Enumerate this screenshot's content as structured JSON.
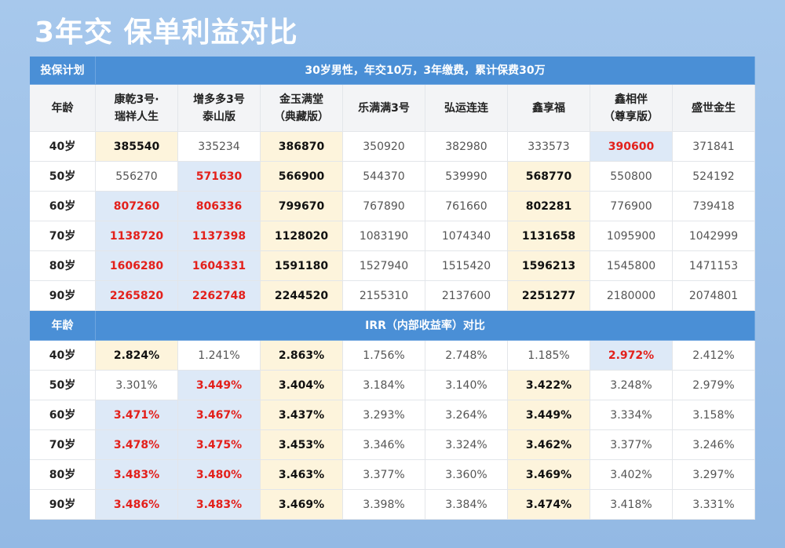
{
  "header": {
    "title": "3年交 保单利益对比"
  },
  "table": {
    "plan_label": "投保计划",
    "plan_desc": "30岁男性，年交10万，3年缴费，累计保费30万",
    "age_label": "年龄",
    "columns": [
      "康乾3号·\n瑞祥人生",
      "增多多3号\n泰山版",
      "金玉满堂\n（典藏版）",
      "乐满满3号",
      "弘运连连",
      "鑫享福",
      "鑫相伴\n（尊享版）",
      "盛世金生"
    ],
    "rows": [
      {
        "age": "40岁",
        "values": [
          385540,
          335234,
          386870,
          350920,
          382980,
          333573,
          390600,
          371841
        ]
      },
      {
        "age": "50岁",
        "values": [
          556270,
          571630,
          566900,
          544370,
          539990,
          568770,
          550800,
          524192
        ]
      },
      {
        "age": "60岁",
        "values": [
          807260,
          806336,
          799670,
          767890,
          761660,
          802281,
          776900,
          739418
        ]
      },
      {
        "age": "70岁",
        "values": [
          1138720,
          1137398,
          1128020,
          1083190,
          1074340,
          1131658,
          1095900,
          1042999
        ]
      },
      {
        "age": "80岁",
        "values": [
          1606280,
          1604331,
          1591180,
          1527940,
          1515420,
          1596213,
          1545800,
          1471153
        ]
      },
      {
        "age": "90岁",
        "values": [
          2265820,
          2262748,
          2244520,
          2155310,
          2137600,
          2251277,
          2180000,
          2074801
        ]
      }
    ]
  },
  "irr": {
    "age_label": "年龄",
    "title": "IRR（内部收益率）对比",
    "rows": [
      {
        "age": "40岁",
        "values": [
          "2.824%",
          "1.241%",
          "2.863%",
          "1.756%",
          "2.748%",
          "1.185%",
          "2.972%",
          "2.412%"
        ]
      },
      {
        "age": "50岁",
        "values": [
          "3.301%",
          "3.449%",
          "3.404%",
          "3.184%",
          "3.140%",
          "3.422%",
          "3.248%",
          "2.979%"
        ]
      },
      {
        "age": "60岁",
        "values": [
          "3.471%",
          "3.467%",
          "3.437%",
          "3.293%",
          "3.264%",
          "3.449%",
          "3.334%",
          "3.158%"
        ]
      },
      {
        "age": "70岁",
        "values": [
          "3.478%",
          "3.475%",
          "3.453%",
          "3.346%",
          "3.324%",
          "3.462%",
          "3.377%",
          "3.246%"
        ]
      },
      {
        "age": "80岁",
        "values": [
          "3.483%",
          "3.480%",
          "3.463%",
          "3.377%",
          "3.360%",
          "3.469%",
          "3.402%",
          "3.297%"
        ]
      },
      {
        "age": "90岁",
        "values": [
          "3.486%",
          "3.483%",
          "3.469%",
          "3.398%",
          "3.384%",
          "3.474%",
          "3.418%",
          "3.331%"
        ]
      }
    ]
  }
}
